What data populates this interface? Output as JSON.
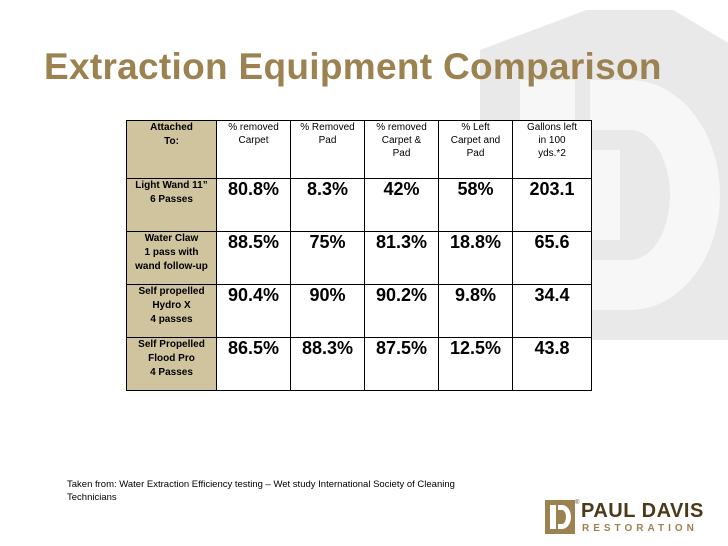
{
  "slide": {
    "title": "Extraction Equipment Comparison",
    "source_note": "Taken from: Water Extraction Efficiency testing – Wet  study International Society of Cleaning Technicians"
  },
  "table": {
    "headers": [
      [
        "Attached",
        "To:"
      ],
      [
        "% removed",
        "Carpet"
      ],
      [
        "% Removed",
        "Pad"
      ],
      [
        "% removed",
        "Carpet &",
        "Pad"
      ],
      [
        "% Left",
        "Carpet and",
        "Pad"
      ],
      [
        "Gallons left",
        "in 100",
        "yds.*2"
      ]
    ],
    "rows": [
      {
        "label": [
          "Light Wand 11”",
          "6 Passes"
        ],
        "values": [
          "80.8%",
          "8.3%",
          "42%",
          "58%",
          "203.1"
        ]
      },
      {
        "label": [
          "Water Claw",
          "1 pass with",
          "wand follow-up"
        ],
        "values": [
          "88.5%",
          "75%",
          "81.3%",
          "18.8%",
          "65.6"
        ]
      },
      {
        "label": [
          "Self propelled",
          "Hydro X",
          "4 passes"
        ],
        "values": [
          "90.4%",
          "90%",
          "90.2%",
          "9.8%",
          "34.4"
        ]
      },
      {
        "label": [
          "Self Propelled",
          "Flood Pro",
          "4 Passes"
        ],
        "values": [
          "86.5%",
          "88.3%",
          "87.5%",
          "12.5%",
          "43.8"
        ]
      }
    ]
  },
  "logo": {
    "name": "PAUL DAVIS",
    "tagline": "RESTORATION",
    "registered_mark": "®"
  },
  "colors": {
    "title": "#9c8250",
    "label_fill": "#cfc49e",
    "logo_dark": "#4a3a1a",
    "logo_gold": "#9c8250",
    "watermark": "#e6e6e6"
  }
}
